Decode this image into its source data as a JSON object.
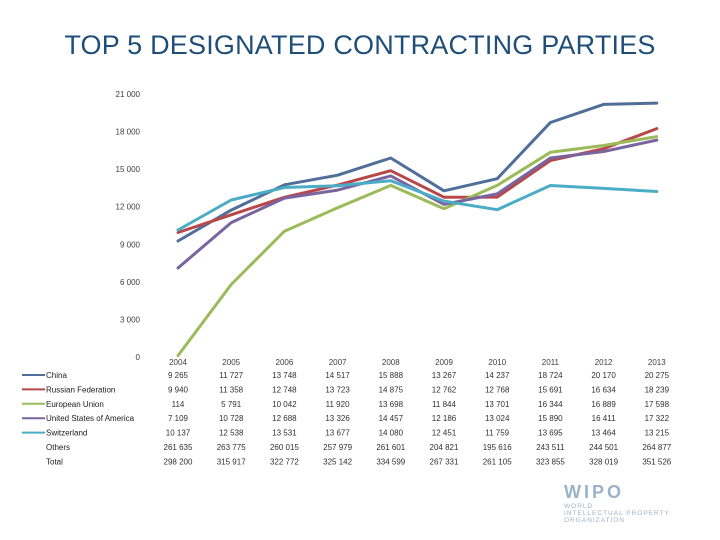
{
  "slide": {
    "title": "TOP 5 DESIGNATED CONTRACTING PARTIES"
  },
  "logo": {
    "mark": "WIPO",
    "line1": "WORLD",
    "line2": "INTELLECTUAL PROPERTY",
    "line3": "ORGANIZATION"
  },
  "chart_data": {
    "type": "line",
    "title": "TOP 5 DESIGNATED CONTRACTING PARTIES",
    "xlabel": "",
    "ylabel": "",
    "ylim": [
      0,
      21000
    ],
    "y_ticks": [
      0,
      3000,
      6000,
      9000,
      12000,
      15000,
      18000,
      21000
    ],
    "y_tick_labels": [
      "0",
      "3 000",
      "6 000",
      "9 000",
      "12 000",
      "15 000",
      "18 000",
      "21 000"
    ],
    "categories": [
      "2004",
      "2005",
      "2006",
      "2007",
      "2008",
      "2009",
      "2010",
      "2011",
      "2012",
      "2013"
    ],
    "series": [
      {
        "name": "China",
        "color": "#4f6f9a",
        "plotted": true,
        "values": [
          9265,
          11727,
          13748,
          14517,
          15888,
          13267,
          14237,
          18724,
          20170,
          20275
        ],
        "labels": [
          "9 265",
          "11 727",
          "13 748",
          "14 517",
          "15 888",
          "13 267",
          "14 237",
          "18 724",
          "20 170",
          "20 275"
        ]
      },
      {
        "name": "Russian Federation",
        "color": "#b84747",
        "plotted": true,
        "values": [
          9940,
          11358,
          12748,
          13723,
          14875,
          12762,
          12768,
          15691,
          16634,
          18239
        ],
        "labels": [
          "9 940",
          "11 358",
          "12 748",
          "13 723",
          "14 875",
          "12 762",
          "12 768",
          "15 691",
          "16 634",
          "18 239"
        ]
      },
      {
        "name": "European Union",
        "color": "#9bbb59",
        "plotted": true,
        "values": [
          114,
          5791,
          10042,
          11920,
          13698,
          11844,
          13701,
          16344,
          16889,
          17598
        ],
        "labels": [
          "114",
          "5 791",
          "10 042",
          "11 920",
          "13 698",
          "11 844",
          "13 701",
          "16 344",
          "16 889",
          "17 598"
        ]
      },
      {
        "name": "United States of America",
        "color": "#7a64a0",
        "plotted": true,
        "values": [
          7109,
          10728,
          12688,
          13326,
          14457,
          12186,
          13024,
          15890,
          16411,
          17322
        ],
        "labels": [
          "7 109",
          "10 728",
          "12 688",
          "13 326",
          "14 457",
          "12 186",
          "13 024",
          "15 890",
          "16 411",
          "17 322"
        ]
      },
      {
        "name": "Switzerland",
        "color": "#4bacc6",
        "plotted": true,
        "values": [
          10137,
          12538,
          13531,
          13677,
          14080,
          12451,
          11759,
          13695,
          13464,
          13215
        ],
        "labels": [
          "10 137",
          "12 538",
          "13 531",
          "13 677",
          "14 080",
          "12 451",
          "11 759",
          "13 695",
          "13 464",
          "13 215"
        ]
      },
      {
        "name": "Others",
        "color": "",
        "plotted": false,
        "values": [
          261635,
          263775,
          260015,
          257979,
          261601,
          204821,
          195616,
          243511,
          244501,
          264877
        ],
        "labels": [
          "261 635",
          "263 775",
          "260 015",
          "257 979",
          "261 601",
          "204 821",
          "195 616",
          "243 511",
          "244 501",
          "264 877"
        ]
      },
      {
        "name": "Total",
        "color": "",
        "plotted": false,
        "values": [
          298200,
          315917,
          322772,
          325142,
          334599,
          267331,
          261105,
          323855,
          328019,
          351526
        ],
        "labels": [
          "298 200",
          "315 917",
          "322 772",
          "325 142",
          "334 599",
          "267 331",
          "261 105",
          "323 855",
          "328 019",
          "351 526"
        ]
      }
    ]
  }
}
